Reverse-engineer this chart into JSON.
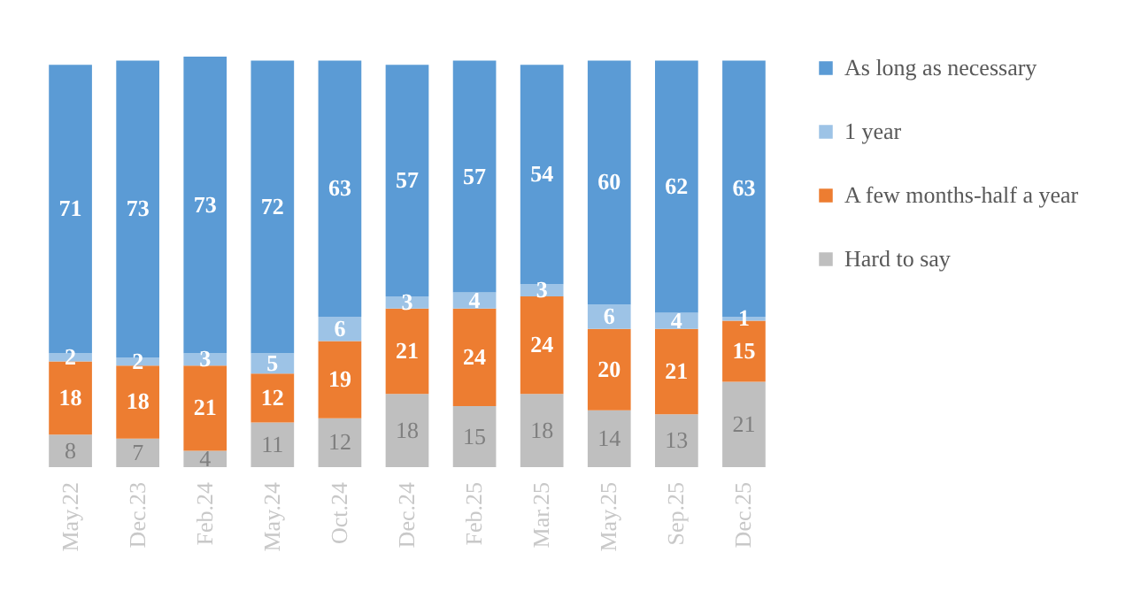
{
  "chart_data": {
    "type": "bar",
    "stacked": true,
    "data_labels": true,
    "legend": "right",
    "grid": false,
    "categories": [
      "May.22",
      "Dec.23",
      "Feb.24",
      "May.24",
      "Oct.24",
      "Dec.24",
      "Feb.25",
      "Mar.25",
      "May.25",
      "Sep.25",
      "Dec.25"
    ],
    "series": [
      {
        "name": "Hard to say",
        "color": "#bfbfbf",
        "values": [
          8,
          7,
          4,
          11,
          12,
          18,
          15,
          18,
          14,
          13,
          21
        ]
      },
      {
        "name": "A few months-half a year",
        "color": "#ed7d31",
        "values": [
          18,
          18,
          21,
          12,
          19,
          21,
          24,
          24,
          20,
          21,
          15
        ]
      },
      {
        "name": "1 year",
        "color": "#9dc3e6",
        "values": [
          2,
          2,
          3,
          5,
          6,
          3,
          4,
          3,
          6,
          4,
          1
        ]
      },
      {
        "name": "As long as necessary",
        "color": "#5b9bd5",
        "values": [
          71,
          73,
          73,
          72,
          63,
          57,
          57,
          54,
          60,
          62,
          63
        ]
      }
    ]
  }
}
